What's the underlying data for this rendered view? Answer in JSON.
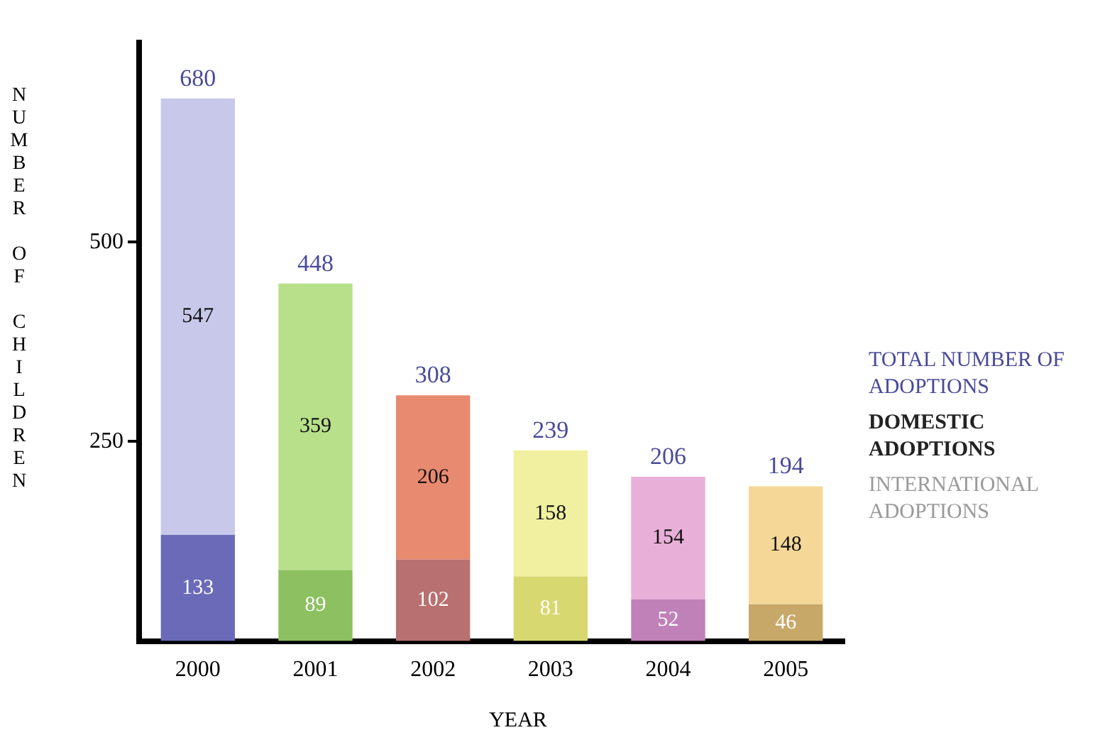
{
  "chart_data": {
    "type": "bar",
    "stacked": true,
    "xlabel": "YEAR",
    "ylabel": "NUMBER OF CHILDREN",
    "categories": [
      "2000",
      "2001",
      "2002",
      "2003",
      "2004",
      "2005"
    ],
    "series": [
      {
        "name": "INTERNATIONAL ADOPTIONS",
        "colors": [
          "#6a6ab8",
          "#8cc060",
          "#b87070",
          "#d8d870",
          "#c080b8",
          "#c8a868"
        ],
        "values": [
          133,
          89,
          102,
          81,
          52,
          46
        ]
      },
      {
        "name": "DOMESTIC ADOPTIONS",
        "colors": [
          "#c8c8ea",
          "#b8e08a",
          "#e88a70",
          "#f0f0a0",
          "#e8b0d8",
          "#f5d898"
        ],
        "values": [
          547,
          359,
          206,
          158,
          154,
          148
        ]
      }
    ],
    "totals": [
      "680",
      "448",
      "308",
      "239",
      "206",
      "194"
    ],
    "annotations": [
      "TOTAL NUMBER OF ADOPTIONS"
    ],
    "data_labels": true,
    "legend": "right",
    "grid": false,
    "ylim": [
      0,
      750
    ],
    "yticks": [
      250,
      500
    ]
  }
}
